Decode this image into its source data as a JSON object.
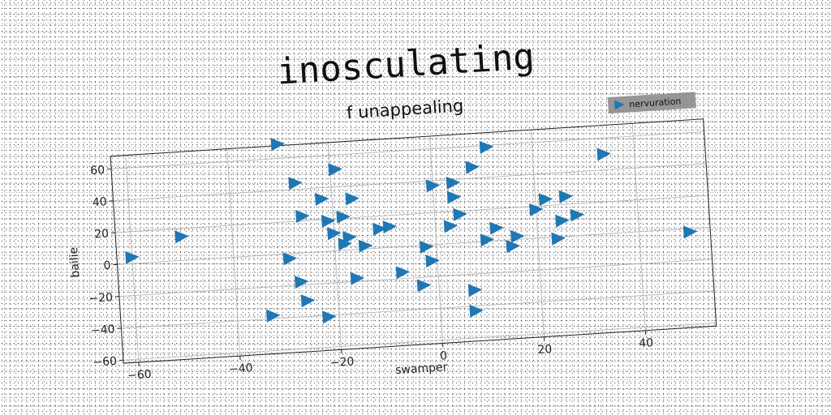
{
  "main_title": "inosculating",
  "chart_data": {
    "type": "scatter",
    "title": "f unappealing",
    "xlabel": "swamper",
    "ylabel": "bailie",
    "xlim": [
      -63,
      54
    ],
    "ylim": [
      -62,
      68
    ],
    "xticks": [
      -60,
      -40,
      -20,
      0,
      20,
      40
    ],
    "yticks": [
      -60,
      -40,
      -20,
      0,
      20,
      40,
      60
    ],
    "grid": true,
    "legend_position": "top-right",
    "marker": "triangle-right",
    "series": [
      {
        "name": "nervuration",
        "color": "#1f77b4",
        "points": [
          [
            -60,
            4
          ],
          [
            -50,
            15
          ],
          [
            -30,
            69
          ],
          [
            -27,
            44
          ],
          [
            -26,
            23
          ],
          [
            -29,
            -3
          ],
          [
            -27,
            -18
          ],
          [
            -26,
            -30
          ],
          [
            -33,
            -38
          ],
          [
            -22,
            -41
          ],
          [
            -19,
            51
          ],
          [
            -22,
            33
          ],
          [
            -21,
            19
          ],
          [
            -18,
            21
          ],
          [
            -20,
            11
          ],
          [
            -17,
            8
          ],
          [
            -18,
            4
          ],
          [
            -16,
            32
          ],
          [
            -16,
            -18
          ],
          [
            -14,
            2
          ],
          [
            -11,
            12
          ],
          [
            -9,
            13
          ],
          [
            -7,
            -16
          ],
          [
            -3,
            -25
          ],
          [
            -2,
            -1
          ],
          [
            -1,
            -10
          ],
          [
            0,
            37
          ],
          [
            3,
            11
          ],
          [
            4,
            38
          ],
          [
            4,
            29
          ],
          [
            5,
            18
          ],
          [
            8,
            47
          ],
          [
            7,
            -30
          ],
          [
            7,
            -43
          ],
          [
            11,
            59
          ],
          [
            10,
            1
          ],
          [
            12,
            8
          ],
          [
            15,
            -4
          ],
          [
            16,
            2
          ],
          [
            20,
            18
          ],
          [
            22,
            24
          ],
          [
            24,
            -1
          ],
          [
            25,
            10
          ],
          [
            26,
            25
          ],
          [
            28,
            13
          ],
          [
            34,
            50
          ],
          [
            50,
            -2
          ]
        ]
      }
    ]
  }
}
